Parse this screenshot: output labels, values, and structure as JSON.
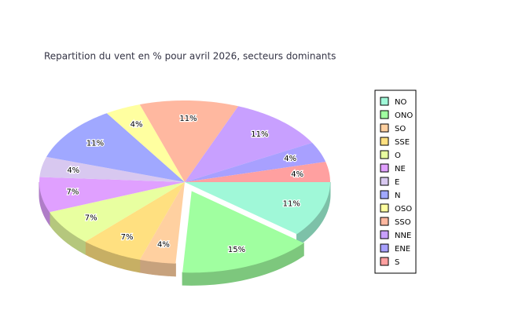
{
  "chart_data": {
    "type": "pie3d",
    "title": "Repartition du vent en % pour avril 2026, secteurs dominants",
    "categories": [
      "NO",
      "ONO",
      "SO",
      "SSE",
      "O",
      "NE",
      "E",
      "N",
      "OSO",
      "SSO",
      "NNE",
      "ENE",
      "S"
    ],
    "values": [
      11,
      15,
      4,
      7,
      7,
      7,
      4,
      11,
      4,
      11,
      11,
      4,
      4
    ],
    "value_labels": [
      "11%",
      "15%",
      "4%",
      "7%",
      "7%",
      "7%",
      "4%",
      "11%",
      "4%",
      "11%",
      "11%",
      "4%",
      "4%"
    ],
    "colors": [
      "#a0f8d8",
      "#a0ffa0",
      "#ffd0a0",
      "#ffe080",
      "#e8ffa0",
      "#e0a0ff",
      "#d8c8f0",
      "#a0a8ff",
      "#ffffa0",
      "#ffb8a0",
      "#c8a0ff",
      "#a8a0ff",
      "#ffa0a0"
    ],
    "explode": [
      false,
      true,
      false,
      false,
      false,
      false,
      false,
      false,
      false,
      false,
      false,
      false,
      false
    ],
    "legend": "right"
  }
}
